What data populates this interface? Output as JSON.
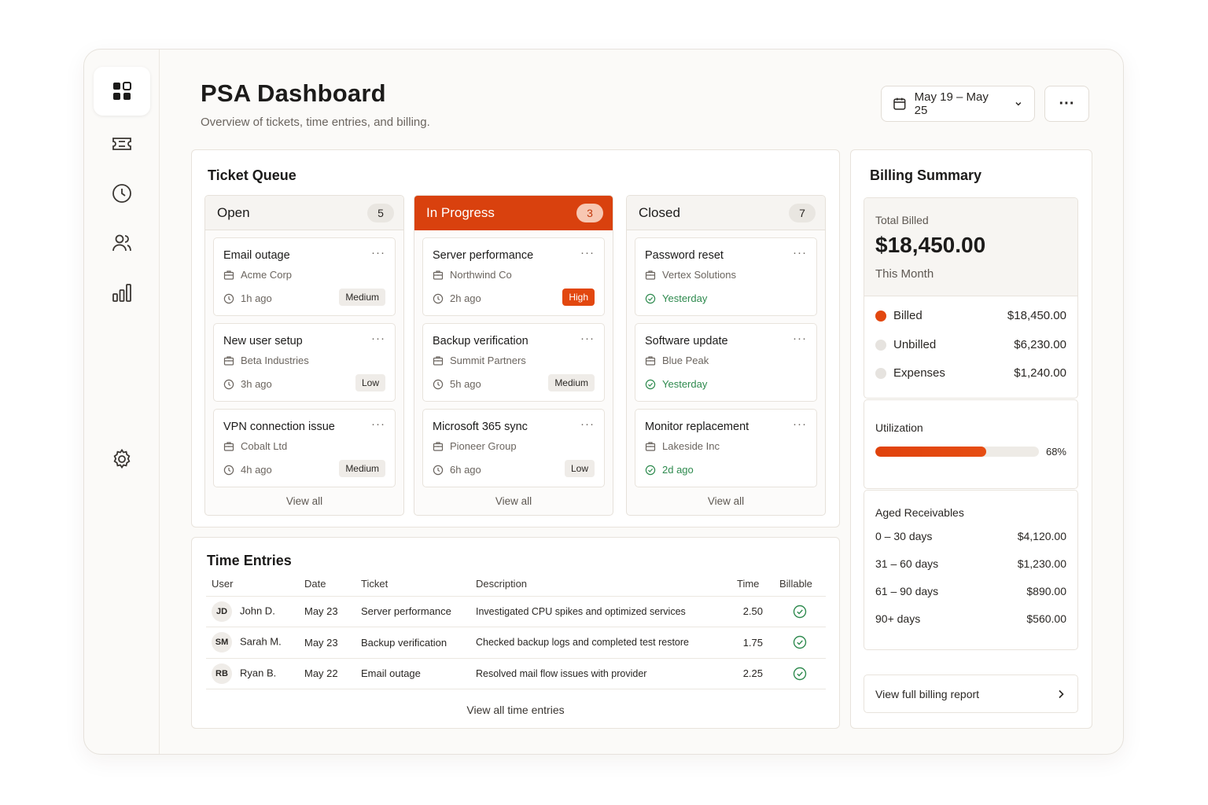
{
  "header": {
    "title": "PSA Dashboard",
    "subtitle": "Overview of tickets, time entries, and billing.",
    "date_range": "May 19 – May 25",
    "more_label": "···"
  },
  "sidebar": {
    "items": [
      {
        "name": "dashboard",
        "icon": "dashboard-grid-icon",
        "active": true
      },
      {
        "name": "tickets",
        "icon": "ticket-icon"
      },
      {
        "name": "time",
        "icon": "clock-icon"
      },
      {
        "name": "users",
        "icon": "users-icon"
      },
      {
        "name": "reports",
        "icon": "bar-chart-icon"
      },
      {
        "name": "settings",
        "icon": "gear-icon"
      }
    ]
  },
  "ticket_queue": {
    "title": "Ticket Queue",
    "view_all": "View all",
    "menu": "···",
    "columns": [
      {
        "title": "Open",
        "count": "5",
        "tickets": [
          {
            "title": "Email outage",
            "client": "Acme Corp",
            "time": "1h ago",
            "priority": "Medium"
          },
          {
            "title": "New user setup",
            "client": "Beta Industries",
            "time": "3h ago",
            "priority": "Low"
          },
          {
            "title": "VPN connection issue",
            "client": "Cobalt Ltd",
            "time": "4h ago",
            "priority": "Medium"
          }
        ]
      },
      {
        "title": "In Progress",
        "count": "3",
        "tickets": [
          {
            "title": "Server performance",
            "client": "Northwind Co",
            "time": "2h ago",
            "priority": "High"
          },
          {
            "title": "Backup verification",
            "client": "Summit Partners",
            "time": "5h ago",
            "priority": "Medium"
          },
          {
            "title": "Microsoft 365 sync",
            "client": "Pioneer Group",
            "time": "6h ago",
            "priority": "Low"
          }
        ]
      },
      {
        "title": "Closed",
        "count": "7",
        "tickets": [
          {
            "title": "Password reset",
            "client": "Vertex Solutions",
            "time": "Yesterday"
          },
          {
            "title": "Software update",
            "client": "Blue Peak",
            "time": "Yesterday"
          },
          {
            "title": "Monitor replacement",
            "client": "Lakeside Inc",
            "time": "2d ago"
          }
        ]
      }
    ]
  },
  "time_entries": {
    "title": "Time Entries",
    "columns": [
      "User",
      "Date",
      "Ticket",
      "Description",
      "Time",
      "Billable"
    ],
    "rows": [
      {
        "initials": "JD",
        "user": "John D.",
        "date": "May 23",
        "ticket": "Server performance",
        "description": "Investigated CPU spikes and optimized services",
        "time": "2.50",
        "billable": true
      },
      {
        "initials": "SM",
        "user": "Sarah M.",
        "date": "May 23",
        "ticket": "Backup verification",
        "description": "Checked backup logs and completed test restore",
        "time": "1.75",
        "billable": true
      },
      {
        "initials": "RB",
        "user": "Ryan B.",
        "date": "May 22",
        "ticket": "Email outage",
        "description": "Resolved mail flow issues with provider",
        "time": "2.25",
        "billable": true
      }
    ],
    "view_all": "View all time entries"
  },
  "billing": {
    "title": "Billing Summary",
    "total_label": "Total Billed",
    "total_value": "$18,450.00",
    "period": "This Month",
    "breakdown": [
      {
        "label": "Billed",
        "value": "$18,450.00",
        "color": "#e2470f"
      },
      {
        "label": "Unbilled",
        "value": "$6,230.00",
        "color": "#e6e3df"
      },
      {
        "label": "Expenses",
        "value": "$1,240.00",
        "color": "#e6e3df"
      }
    ],
    "utilization_label": "Utilization",
    "utilization_value": "68%",
    "utilization_fraction": 0.68,
    "aged_title": "Aged Receivables",
    "aged": [
      {
        "label": "0 – 30 days",
        "value": "$4,120.00"
      },
      {
        "label": "31 – 60 days",
        "value": "$1,230.00"
      },
      {
        "label": "61 – 90 days",
        "value": "$890.00"
      },
      {
        "label": "90+ days",
        "value": "$560.00"
      }
    ],
    "report_link": "View full billing report"
  },
  "colors": {
    "accent": "#d9410e",
    "success": "#2e8a4e"
  }
}
